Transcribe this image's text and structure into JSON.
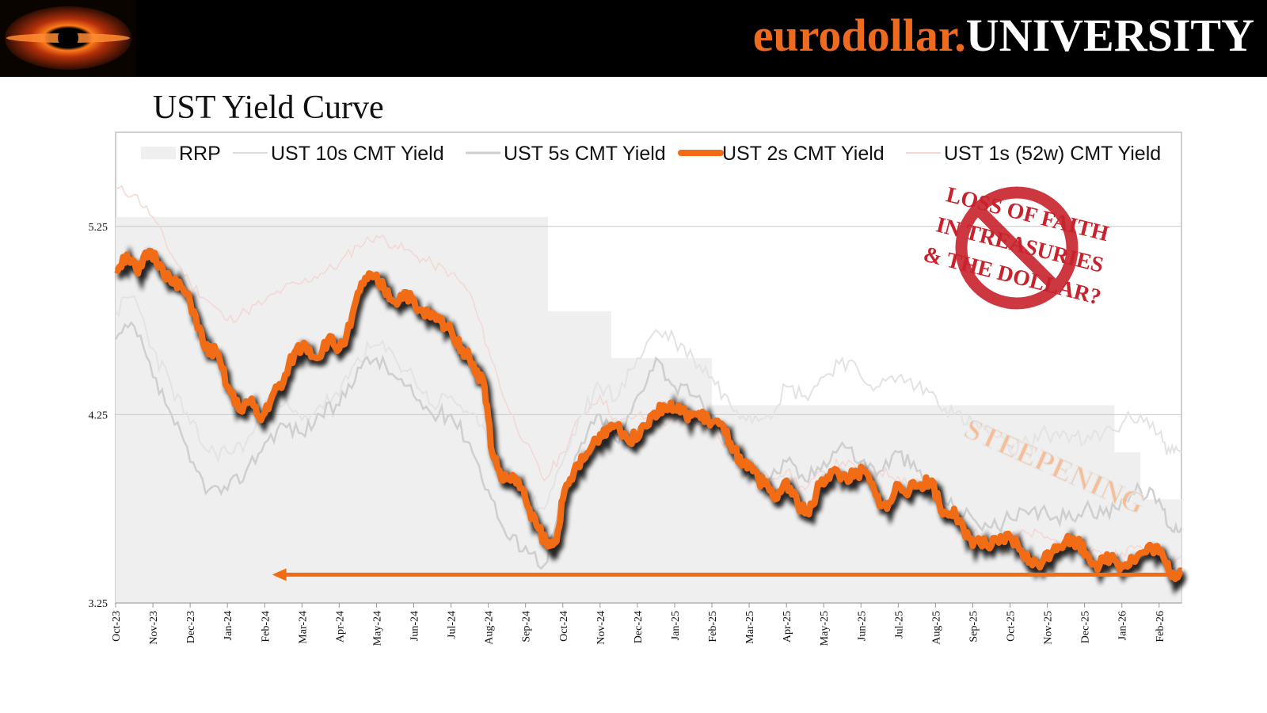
{
  "header": {
    "brand_part1": "eurodollar.",
    "brand_part2": "UNIVERSITY",
    "logo_icon": "black-hole-logo-icon"
  },
  "title": "UST Yield Curve",
  "chart_data": {
    "type": "line",
    "title": "UST Yield Curve",
    "ylim": [
      3.25,
      5.75
    ],
    "yticks": [
      "3.25",
      "4.25",
      "5.25"
    ],
    "ytick_values": [
      3.25,
      4.25,
      5.25
    ],
    "gridlines": [
      4.25,
      5.25
    ],
    "x_months": [
      "Oct-23",
      "Nov-23",
      "Dec-23",
      "Jan-24",
      "Feb-24",
      "Mar-24",
      "Apr-24",
      "May-24",
      "Jun-24",
      "Jul-24",
      "Aug-24",
      "Sep-24",
      "Oct-24",
      "Nov-24",
      "Dec-24",
      "Jan-25",
      "Feb-25",
      "Mar-25",
      "Apr-25",
      "May-25",
      "Jun-25",
      "Jul-25",
      "Aug-25",
      "Sep-25",
      "Oct-25",
      "Nov-25",
      "Dec-25",
      "Jan-26",
      "Feb-26"
    ],
    "x_range_months": [
      0,
      28.6
    ],
    "legend": [
      "RRP",
      "UST 10s CMT Yield",
      "UST 5s CMT Yield",
      "UST 2s CMT Yield",
      "UST 1s (52w) CMT Yield"
    ],
    "colors": {
      "rrp": "#efefef",
      "ust10": "#eeeeee",
      "ust5": "#cfcfcf",
      "ust2": "#f26c15",
      "ust1": "#f3d7d5",
      "shadow": "#000000"
    },
    "series": [
      {
        "name": "RRP",
        "type": "step-area",
        "points": [
          [
            0,
            5.3
          ],
          [
            11.6,
            5.3
          ],
          [
            11.6,
            4.8
          ],
          [
            13.3,
            4.8
          ],
          [
            13.3,
            4.55
          ],
          [
            16.0,
            4.55
          ],
          [
            16.0,
            4.3
          ],
          [
            26.8,
            4.3
          ],
          [
            26.8,
            4.05
          ],
          [
            27.5,
            4.05
          ],
          [
            27.5,
            3.8
          ],
          [
            28.6,
            3.8
          ]
        ]
      },
      {
        "name": "UST 10s CMT Yield",
        "points": [
          [
            0,
            4.8
          ],
          [
            0.5,
            4.88
          ],
          [
            1,
            4.6
          ],
          [
            1.5,
            4.4
          ],
          [
            2,
            4.2
          ],
          [
            2.5,
            4.05
          ],
          [
            3,
            4.05
          ],
          [
            3.5,
            4.1
          ],
          [
            4,
            4.25
          ],
          [
            4.5,
            4.3
          ],
          [
            5,
            4.22
          ],
          [
            5.5,
            4.3
          ],
          [
            6,
            4.35
          ],
          [
            6.5,
            4.55
          ],
          [
            7,
            4.62
          ],
          [
            7.5,
            4.55
          ],
          [
            8,
            4.45
          ],
          [
            8.5,
            4.3
          ],
          [
            9,
            4.35
          ],
          [
            9.5,
            4.25
          ],
          [
            10,
            4.1
          ],
          [
            10.5,
            3.9
          ],
          [
            11,
            3.82
          ],
          [
            11.5,
            3.75
          ],
          [
            12,
            4.0
          ],
          [
            12.5,
            4.25
          ],
          [
            13,
            4.4
          ],
          [
            13.5,
            4.35
          ],
          [
            14,
            4.55
          ],
          [
            14.5,
            4.7
          ],
          [
            15,
            4.65
          ],
          [
            15.5,
            4.55
          ],
          [
            16,
            4.45
          ],
          [
            16.5,
            4.3
          ],
          [
            17,
            4.25
          ],
          [
            17.5,
            4.25
          ],
          [
            18,
            4.4
          ],
          [
            18.5,
            4.35
          ],
          [
            19,
            4.45
          ],
          [
            19.5,
            4.55
          ],
          [
            20,
            4.45
          ],
          [
            20.5,
            4.4
          ],
          [
            21,
            4.45
          ],
          [
            21.5,
            4.4
          ],
          [
            22,
            4.35
          ],
          [
            22.5,
            4.25
          ],
          [
            23,
            4.2
          ],
          [
            23.5,
            4.15
          ],
          [
            24,
            4.05
          ],
          [
            24.5,
            4.1
          ],
          [
            25,
            4.15
          ],
          [
            25.5,
            4.15
          ],
          [
            26,
            4.1
          ],
          [
            26.5,
            4.15
          ],
          [
            27,
            4.2
          ],
          [
            27.5,
            4.25
          ],
          [
            28,
            4.15
          ],
          [
            28.3,
            4.05
          ],
          [
            28.6,
            4.05
          ]
        ]
      },
      {
        "name": "UST 5s CMT Yield",
        "points": [
          [
            0,
            4.65
          ],
          [
            0.5,
            4.72
          ],
          [
            1,
            4.45
          ],
          [
            1.5,
            4.25
          ],
          [
            2,
            4.0
          ],
          [
            2.5,
            3.85
          ],
          [
            3,
            3.85
          ],
          [
            3.5,
            3.95
          ],
          [
            4,
            4.1
          ],
          [
            4.5,
            4.2
          ],
          [
            5,
            4.15
          ],
          [
            5.5,
            4.25
          ],
          [
            6,
            4.3
          ],
          [
            6.5,
            4.5
          ],
          [
            7,
            4.55
          ],
          [
            7.5,
            4.45
          ],
          [
            8,
            4.35
          ],
          [
            8.5,
            4.25
          ],
          [
            9,
            4.25
          ],
          [
            9.5,
            4.1
          ],
          [
            10,
            3.85
          ],
          [
            10.5,
            3.6
          ],
          [
            11,
            3.55
          ],
          [
            11.5,
            3.45
          ],
          [
            12,
            3.8
          ],
          [
            12.5,
            4.1
          ],
          [
            13,
            4.25
          ],
          [
            13.5,
            4.1
          ],
          [
            14,
            4.35
          ],
          [
            14.5,
            4.55
          ],
          [
            15,
            4.4
          ],
          [
            15.5,
            4.35
          ],
          [
            16,
            4.25
          ],
          [
            16.5,
            4.05
          ],
          [
            17,
            3.95
          ],
          [
            17.5,
            3.9
          ],
          [
            18,
            4.0
          ],
          [
            18.5,
            3.9
          ],
          [
            19,
            4.0
          ],
          [
            19.5,
            4.1
          ],
          [
            20,
            4.0
          ],
          [
            20.5,
            3.95
          ],
          [
            21,
            4.05
          ],
          [
            21.5,
            3.95
          ],
          [
            22,
            3.85
          ],
          [
            22.5,
            3.75
          ],
          [
            23,
            3.7
          ],
          [
            23.5,
            3.65
          ],
          [
            24,
            3.7
          ],
          [
            24.5,
            3.72
          ],
          [
            25,
            3.72
          ],
          [
            25.5,
            3.7
          ],
          [
            26,
            3.75
          ],
          [
            26.5,
            3.72
          ],
          [
            27,
            3.8
          ],
          [
            27.5,
            3.85
          ],
          [
            28,
            3.8
          ],
          [
            28.3,
            3.65
          ],
          [
            28.6,
            3.65
          ]
        ]
      },
      {
        "name": "UST 1s (52w) CMT Yield",
        "points": [
          [
            0,
            5.45
          ],
          [
            0.5,
            5.42
          ],
          [
            1,
            5.3
          ],
          [
            1.5,
            5.1
          ],
          [
            2,
            4.95
          ],
          [
            2.5,
            4.85
          ],
          [
            3,
            4.75
          ],
          [
            3.5,
            4.8
          ],
          [
            4,
            4.85
          ],
          [
            4.5,
            4.92
          ],
          [
            5,
            4.95
          ],
          [
            5.5,
            5.0
          ],
          [
            6,
            5.05
          ],
          [
            6.5,
            5.15
          ],
          [
            7,
            5.2
          ],
          [
            7.5,
            5.15
          ],
          [
            8,
            5.1
          ],
          [
            8.5,
            5.05
          ],
          [
            9,
            5.0
          ],
          [
            9.5,
            4.9
          ],
          [
            10,
            4.6
          ],
          [
            10.5,
            4.3
          ],
          [
            11,
            4.1
          ],
          [
            11.5,
            3.9
          ],
          [
            12,
            4.05
          ],
          [
            12.5,
            4.25
          ],
          [
            13,
            4.35
          ],
          [
            13.5,
            4.2
          ],
          [
            14,
            4.25
          ],
          [
            14.5,
            4.2
          ],
          [
            15,
            4.22
          ],
          [
            15.5,
            4.18
          ],
          [
            16,
            4.2
          ],
          [
            16.5,
            4.05
          ],
          [
            17,
            3.95
          ],
          [
            17.5,
            3.92
          ],
          [
            18,
            3.95
          ],
          [
            18.5,
            3.85
          ],
          [
            19,
            3.95
          ],
          [
            19.5,
            4.0
          ],
          [
            20,
            3.95
          ],
          [
            20.5,
            3.95
          ],
          [
            21,
            3.92
          ],
          [
            21.5,
            3.88
          ],
          [
            22,
            3.8
          ],
          [
            22.5,
            3.7
          ],
          [
            23,
            3.62
          ],
          [
            23.5,
            3.58
          ],
          [
            24,
            3.6
          ],
          [
            24.5,
            3.62
          ],
          [
            25,
            3.6
          ],
          [
            25.5,
            3.55
          ],
          [
            26,
            3.55
          ],
          [
            26.5,
            3.5
          ],
          [
            27,
            3.52
          ],
          [
            27.5,
            3.55
          ],
          [
            28,
            3.5
          ],
          [
            28.3,
            3.48
          ],
          [
            28.6,
            3.5
          ]
        ]
      },
      {
        "name": "UST 2s CMT Yield",
        "points": [
          [
            0,
            5.02
          ],
          [
            0.3,
            5.1
          ],
          [
            0.6,
            5.0
          ],
          [
            0.9,
            5.12
          ],
          [
            1.2,
            5.05
          ],
          [
            1.5,
            4.95
          ],
          [
            1.8,
            4.92
          ],
          [
            2.1,
            4.8
          ],
          [
            2.4,
            4.6
          ],
          [
            2.7,
            4.58
          ],
          [
            3,
            4.4
          ],
          [
            3.3,
            4.28
          ],
          [
            3.6,
            4.32
          ],
          [
            3.9,
            4.22
          ],
          [
            4.2,
            4.35
          ],
          [
            4.5,
            4.42
          ],
          [
            4.8,
            4.58
          ],
          [
            5.1,
            4.62
          ],
          [
            5.4,
            4.55
          ],
          [
            5.7,
            4.65
          ],
          [
            6,
            4.6
          ],
          [
            6.3,
            4.72
          ],
          [
            6.6,
            4.95
          ],
          [
            6.9,
            4.98
          ],
          [
            7.2,
            4.92
          ],
          [
            7.5,
            4.85
          ],
          [
            7.8,
            4.9
          ],
          [
            8.1,
            4.8
          ],
          [
            8.4,
            4.78
          ],
          [
            8.7,
            4.75
          ],
          [
            9,
            4.7
          ],
          [
            9.3,
            4.6
          ],
          [
            9.6,
            4.52
          ],
          [
            9.9,
            4.4
          ],
          [
            10.1,
            4.05
          ],
          [
            10.4,
            3.9
          ],
          [
            10.7,
            3.92
          ],
          [
            11,
            3.8
          ],
          [
            11.3,
            3.66
          ],
          [
            11.6,
            3.55
          ],
          [
            11.8,
            3.57
          ],
          [
            12,
            3.8
          ],
          [
            12.3,
            3.95
          ],
          [
            12.6,
            4.02
          ],
          [
            12.9,
            4.12
          ],
          [
            13.2,
            4.18
          ],
          [
            13.5,
            4.2
          ],
          [
            13.8,
            4.1
          ],
          [
            14.1,
            4.18
          ],
          [
            14.4,
            4.25
          ],
          [
            14.7,
            4.3
          ],
          [
            15,
            4.28
          ],
          [
            15.3,
            4.25
          ],
          [
            15.6,
            4.25
          ],
          [
            15.9,
            4.22
          ],
          [
            16.2,
            4.2
          ],
          [
            16.5,
            4.1
          ],
          [
            16.8,
            3.98
          ],
          [
            17.1,
            3.95
          ],
          [
            17.4,
            3.88
          ],
          [
            17.7,
            3.8
          ],
          [
            18,
            3.9
          ],
          [
            18.3,
            3.78
          ],
          [
            18.6,
            3.72
          ],
          [
            18.9,
            3.88
          ],
          [
            19.2,
            3.95
          ],
          [
            19.5,
            3.92
          ],
          [
            19.8,
            3.92
          ],
          [
            20.1,
            3.95
          ],
          [
            20.4,
            3.82
          ],
          [
            20.7,
            3.75
          ],
          [
            21,
            3.88
          ],
          [
            21.3,
            3.85
          ],
          [
            21.6,
            3.88
          ],
          [
            21.9,
            3.9
          ],
          [
            22.2,
            3.72
          ],
          [
            22.5,
            3.75
          ],
          [
            22.8,
            3.6
          ],
          [
            23.1,
            3.58
          ],
          [
            23.4,
            3.55
          ],
          [
            23.7,
            3.57
          ],
          [
            24,
            3.6
          ],
          [
            24.3,
            3.53
          ],
          [
            24.6,
            3.45
          ],
          [
            24.9,
            3.48
          ],
          [
            25.2,
            3.55
          ],
          [
            25.5,
            3.58
          ],
          [
            25.8,
            3.58
          ],
          [
            26.1,
            3.5
          ],
          [
            26.4,
            3.45
          ],
          [
            26.7,
            3.5
          ],
          [
            27,
            3.45
          ],
          [
            27.3,
            3.48
          ],
          [
            27.6,
            3.52
          ],
          [
            27.9,
            3.55
          ],
          [
            28.2,
            3.45
          ],
          [
            28.4,
            3.4
          ],
          [
            28.6,
            3.42
          ]
        ]
      }
    ]
  },
  "stamp": {
    "line1": "LOSS OF FAITH",
    "line2": "IN TREASURIES",
    "line3": "& THE DOLLAR?",
    "icon": "prohibition-sign-icon",
    "color": "#c8232c"
  },
  "annotations": {
    "steepening": "STEEPENING",
    "arrow_icon": "left-arrow-icon",
    "arrow_color": "#f26c15"
  }
}
